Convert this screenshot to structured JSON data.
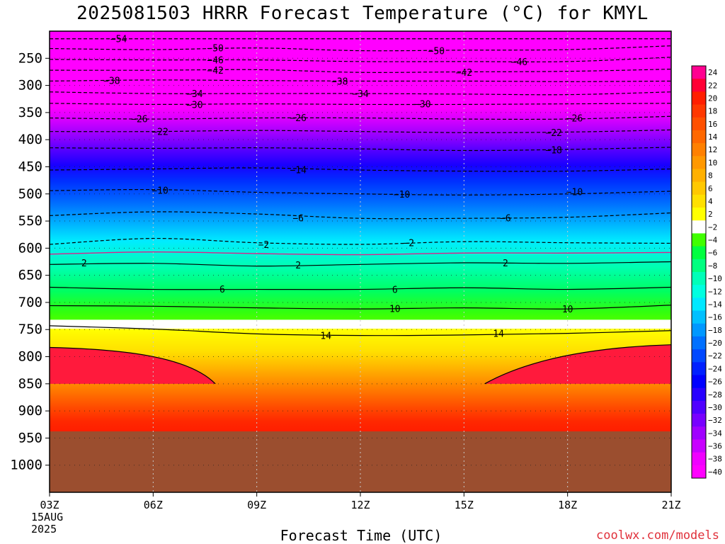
{
  "title": "2025081503 HRRR Forecast Temperature (°C) for KMYL",
  "credit": "coolwx.com/models",
  "chart_data": {
    "type": "heatmap",
    "title": "2025081503 HRRR Forecast Temperature (°C) for KMYL",
    "xlabel": "Forecast Time (UTC)",
    "ylabel": "",
    "x_ticks": [
      "03Z",
      "06Z",
      "09Z",
      "12Z",
      "15Z",
      "18Z",
      "21Z"
    ],
    "x_first_sub": [
      "15AUG",
      "2025"
    ],
    "x_range_hours": [
      3,
      21
    ],
    "y_range_mb": [
      200,
      1050
    ],
    "y_ticks": [
      250,
      300,
      350,
      400,
      450,
      500,
      550,
      600,
      650,
      700,
      750,
      800,
      850,
      900,
      950,
      1000
    ],
    "surface_pressure_mb": 850,
    "ground_color": "#9b4e2f",
    "colorbar_ticks": [
      "24",
      "22",
      "20",
      "18",
      "16",
      "14",
      "12",
      "10",
      "8",
      "6",
      "4",
      "2",
      "−2",
      "−4",
      "−6",
      "−8",
      "−10",
      "−12",
      "−14",
      "−16",
      "−18",
      "−20",
      "−22",
      "−24",
      "−26",
      "−28",
      "−30",
      "−32",
      "−34",
      "−36",
      "−38",
      "−40"
    ],
    "colorbar_colors": [
      "#ff0090",
      "#ff0035",
      "#ff1e00",
      "#ff3800",
      "#ff5000",
      "#ff6800",
      "#ff8000",
      "#ff9800",
      "#ffb000",
      "#ffc800",
      "#ffe000",
      "#ffff00",
      "#ffffff",
      "#40ff00",
      "#00ff40",
      "#00ff80",
      "#00ffb8",
      "#00ffe0",
      "#00e8ff",
      "#00c0ff",
      "#0098ff",
      "#0070ff",
      "#0048ff",
      "#0020ff",
      "#0000ff",
      "#2800ff",
      "#5000ff",
      "#7800ff",
      "#a000ff",
      "#c800ff",
      "#f000ff",
      "#ff00ff"
    ],
    "isotherms": [
      {
        "value": -54,
        "label": "54",
        "mb": [
          214,
          214,
          214,
          214,
          214,
          214,
          214
        ],
        "labels_at": [
          [
            5,
            214
          ]
        ]
      },
      {
        "value": -50,
        "label": "50",
        "mb": [
          232,
          234,
          231,
          236,
          235,
          234,
          227
        ],
        "labels_at": [
          [
            7.8,
            231
          ],
          [
            14.2,
            236
          ]
        ]
      },
      {
        "value": -46,
        "label": "46",
        "mb": [
          252,
          253,
          253,
          256,
          256,
          256,
          248
        ],
        "labels_at": [
          [
            7.8,
            253
          ],
          [
            16.6,
            256
          ]
        ]
      },
      {
        "value": -42,
        "label": "42",
        "mb": [
          272,
          272,
          271,
          276,
          275,
          274,
          270
        ],
        "labels_at": [
          [
            7.8,
            272
          ],
          [
            15,
            276
          ]
        ]
      },
      {
        "value": -38,
        "label": "38",
        "mb": [
          292,
          290,
          291,
          292,
          292,
          293,
          292
        ],
        "labels_at": [
          [
            4.8,
            291
          ],
          [
            11.4,
            292
          ]
        ]
      },
      {
        "value": -34,
        "label": "34",
        "mb": [
          312,
          315,
          315,
          315,
          316,
          317,
          312
        ],
        "labels_at": [
          [
            7.2,
            315
          ],
          [
            12,
            315
          ]
        ]
      },
      {
        "value": -30,
        "label": "30",
        "mb": [
          333,
          335,
          334,
          335,
          335,
          334,
          333
        ],
        "labels_at": [
          [
            7.2,
            335
          ],
          [
            13.8,
            334
          ]
        ]
      },
      {
        "value": -26,
        "label": "26",
        "mb": [
          360,
          362,
          360,
          360,
          362,
          362,
          357
        ],
        "labels_at": [
          [
            5.6,
            361
          ],
          [
            10.2,
            359
          ],
          [
            18.2,
            360
          ]
        ]
      },
      {
        "value": -22,
        "label": "22",
        "mb": [
          385,
          385,
          383,
          385,
          387,
          386,
          382
        ],
        "labels_at": [
          [
            6.2,
            385
          ],
          [
            17.6,
            387
          ]
        ]
      },
      {
        "value": -18,
        "label": "18",
        "mb": [
          415,
          416,
          415,
          417,
          420,
          418,
          414
        ],
        "labels_at": [
          [
            17.6,
            419
          ]
        ]
      },
      {
        "value": -14,
        "label": "14",
        "mb": [
          456,
          454,
          452,
          456,
          458,
          458,
          454
        ],
        "labels_at": [
          [
            10.2,
            455
          ]
        ]
      },
      {
        "value": -10,
        "label": "10",
        "mb": [
          494,
          492,
          497,
          500,
          502,
          500,
          495
        ],
        "labels_at": [
          [
            6.2,
            493
          ],
          [
            13.2,
            500
          ],
          [
            18.2,
            496
          ]
        ]
      },
      {
        "value": -6,
        "label": "6",
        "mb": [
          540,
          533,
          537,
          545,
          545,
          543,
          535
        ],
        "labels_at": [
          [
            10.2,
            544
          ],
          [
            16.2,
            544
          ]
        ]
      },
      {
        "value": -2,
        "label": "2",
        "mb": [
          593,
          582,
          590,
          593,
          588,
          590,
          591
        ],
        "labels_at": [
          [
            9.2,
            593
          ],
          [
            13.4,
            590
          ]
        ]
      },
      {
        "value": 2,
        "label": "2",
        "mb": [
          630,
          628,
          633,
          630,
          627,
          628,
          625
        ],
        "labels_at": [
          [
            4.0,
            627
          ],
          [
            10.2,
            631
          ],
          [
            16.2,
            627
          ]
        ]
      },
      {
        "value": 6,
        "label": "6",
        "mb": [
          672,
          676,
          676,
          676,
          673,
          676,
          672
        ],
        "labels_at": [
          [
            8.0,
            675
          ],
          [
            13,
            676
          ]
        ]
      },
      {
        "value": 10,
        "label": "10",
        "mb": [
          706,
          707,
          710,
          712,
          710,
          712,
          705
        ],
        "labels_at": [
          [
            13,
            711
          ],
          [
            18,
            712
          ]
        ]
      },
      {
        "value": 14,
        "label": "14",
        "mb": [
          743,
          749,
          758,
          761,
          760,
          757,
          752
        ],
        "labels_at": [
          [
            11,
            761
          ],
          [
            16,
            757
          ]
        ]
      },
      {
        "value": 18,
        "label": "",
        "mb": [
          783,
          799,
          800,
          800,
          800,
          800,
          778
        ],
        "labels_at": []
      }
    ]
  }
}
